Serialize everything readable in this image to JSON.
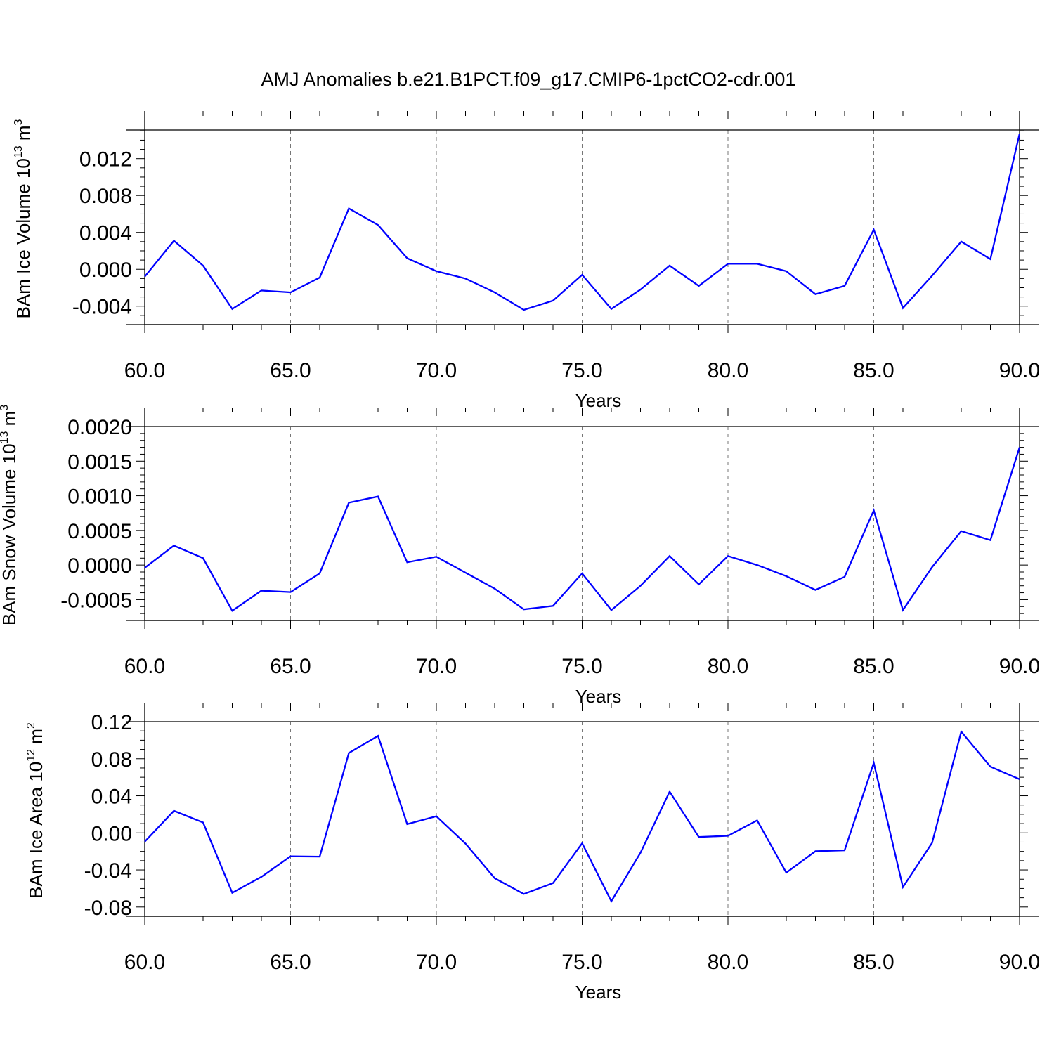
{
  "title": "AMJ Anomalies b.e21.B1PCT.f09_g17.CMIP6-1pctCO2-cdr.001",
  "line_color": "#0000ff",
  "chart_data": [
    {
      "type": "line",
      "ylabel": "BAm Ice Volume 10",
      "ylabel_exp": "13",
      "ylabel_unit": "m",
      "ylabel_unit_exp": "3",
      "xlabel": "Years",
      "xlim": [
        60,
        90
      ],
      "ylim": [
        -0.006,
        0.0151
      ],
      "x_ticks": [
        "60.0",
        "65.0",
        "70.0",
        "75.0",
        "80.0",
        "85.0",
        "90.0"
      ],
      "y_ticks": [
        -0.004,
        0.0,
        0.004,
        0.008,
        0.012
      ],
      "y_tick_labels": [
        "-0.004",
        "0.000",
        "0.004",
        "0.008",
        "0.012"
      ],
      "y_minor_step": 0.001,
      "x": [
        60,
        61,
        62,
        63,
        64,
        65,
        66,
        67,
        68,
        69,
        70,
        71,
        72,
        73,
        74,
        75,
        76,
        77,
        78,
        79,
        80,
        81,
        82,
        83,
        84,
        85,
        86,
        87,
        88,
        89,
        90
      ],
      "values": [
        -0.0008,
        0.0031,
        0.0004,
        -0.0043,
        -0.0023,
        -0.0025,
        -0.0009,
        0.0066,
        0.0048,
        0.0012,
        -0.0002,
        -0.001,
        -0.0025,
        -0.0044,
        -0.0034,
        -0.0006,
        -0.0043,
        -0.0022,
        0.0004,
        -0.0018,
        0.0006,
        0.0006,
        -0.0002,
        -0.0027,
        -0.0018,
        0.0043,
        -0.0042,
        -0.0007,
        0.003,
        0.0011,
        0.0147
      ]
    },
    {
      "type": "line",
      "ylabel": "BAm Snow Volume 10",
      "ylabel_exp": "13",
      "ylabel_unit": "m",
      "ylabel_unit_exp": "3",
      "xlabel": "Years",
      "xlim": [
        60,
        90
      ],
      "ylim": [
        -0.0008,
        0.002
      ],
      "x_ticks": [
        "60.0",
        "65.0",
        "70.0",
        "75.0",
        "80.0",
        "85.0",
        "90.0"
      ],
      "y_ticks": [
        -0.0005,
        0.0,
        0.0005,
        0.001,
        0.0015,
        0.002
      ],
      "y_tick_labels": [
        "-0.0005",
        "0.0000",
        "0.0005",
        "0.0010",
        "0.0015",
        "0.0020"
      ],
      "y_minor_step": 0.0001,
      "x": [
        60,
        61,
        62,
        63,
        64,
        65,
        66,
        67,
        68,
        69,
        70,
        71,
        72,
        73,
        74,
        75,
        76,
        77,
        78,
        79,
        80,
        81,
        82,
        83,
        84,
        85,
        86,
        87,
        88,
        89,
        90
      ],
      "values": [
        -4e-05,
        0.00028,
        0.0001,
        -0.00066,
        -0.00037,
        -0.00039,
        -0.00012,
        0.0009,
        0.00099,
        4e-05,
        0.00012,
        -0.00011,
        -0.00034,
        -0.00064,
        -0.00059,
        -0.00012,
        -0.00065,
        -0.0003,
        0.00013,
        -0.00028,
        0.00013,
        0.0,
        -0.00016,
        -0.00036,
        -0.00017,
        0.00079,
        -0.00065,
        -3e-05,
        0.00049,
        0.00036,
        0.0017
      ]
    },
    {
      "type": "line",
      "ylabel": "BAm Ice Area 10",
      "ylabel_exp": "12",
      "ylabel_unit": "m",
      "ylabel_unit_exp": "2",
      "xlabel": "Years",
      "xlim": [
        60,
        90
      ],
      "ylim": [
        -0.09,
        0.12
      ],
      "x_ticks": [
        "60.0",
        "65.0",
        "70.0",
        "75.0",
        "80.0",
        "85.0",
        "90.0"
      ],
      "y_ticks": [
        -0.08,
        -0.04,
        0.0,
        0.04,
        0.08,
        0.12
      ],
      "y_tick_labels": [
        "-0.08",
        "-0.04",
        "0.00",
        "0.04",
        "0.08",
        "0.12"
      ],
      "y_minor_step": 0.01,
      "x": [
        60,
        61,
        62,
        63,
        64,
        65,
        66,
        67,
        68,
        69,
        70,
        71,
        72,
        73,
        74,
        75,
        76,
        77,
        78,
        79,
        80,
        81,
        82,
        83,
        84,
        85,
        86,
        87,
        88,
        89,
        90
      ],
      "values": [
        -0.0095,
        0.0238,
        0.0112,
        -0.0647,
        -0.0475,
        -0.0253,
        -0.0256,
        0.0862,
        0.1047,
        0.0094,
        0.0179,
        -0.0116,
        -0.0489,
        -0.066,
        -0.0542,
        -0.0112,
        -0.0738,
        -0.0215,
        0.0445,
        -0.0045,
        -0.0032,
        0.0135,
        -0.0429,
        -0.0198,
        -0.0188,
        0.0756,
        -0.0585,
        -0.0108,
        0.1092,
        0.0714,
        0.0579
      ]
    }
  ]
}
